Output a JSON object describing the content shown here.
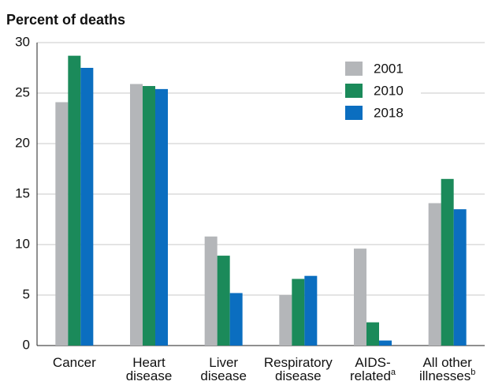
{
  "chart_data": {
    "type": "bar",
    "y_title": "Percent of deaths",
    "categories": [
      [
        "Cancer"
      ],
      [
        "Heart",
        "disease"
      ],
      [
        "Liver",
        "disease"
      ],
      [
        "Respiratory",
        "disease"
      ],
      [
        "AIDS-",
        "related"
      ],
      [
        "All other",
        "illnesses"
      ]
    ],
    "category_notes": [
      null,
      null,
      null,
      null,
      "a",
      "b"
    ],
    "series": [
      {
        "name": "2001",
        "color": "#b4b6b9",
        "values": [
          24.1,
          25.9,
          10.8,
          5.0,
          9.6,
          14.1
        ]
      },
      {
        "name": "2010",
        "color": "#1b8a5a",
        "values": [
          28.7,
          25.7,
          8.9,
          6.6,
          2.3,
          16.5
        ]
      },
      {
        "name": "2018",
        "color": "#0b6ec0",
        "values": [
          27.5,
          25.4,
          5.2,
          6.9,
          0.5,
          13.5
        ]
      }
    ],
    "ylim": [
      0,
      30
    ],
    "yticks": [
      0,
      5,
      10,
      15,
      20,
      25,
      30
    ],
    "grid": true,
    "legend": "top-right"
  }
}
